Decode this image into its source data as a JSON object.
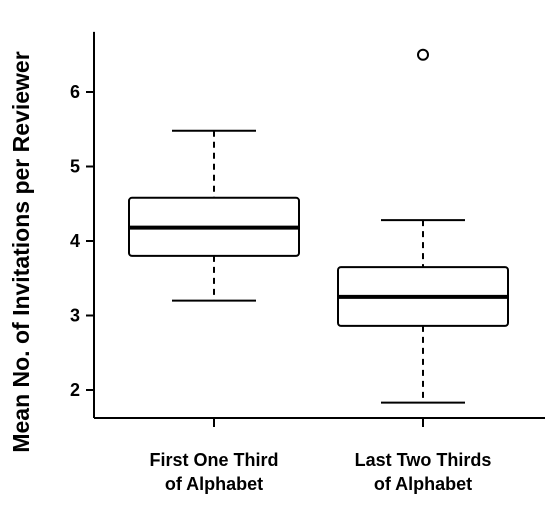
{
  "chart_data": {
    "type": "box",
    "title": "",
    "xlabel": "",
    "ylabel": "Mean No. of Invitations per Reviewer",
    "ylim": [
      1.7,
      6.7
    ],
    "yticks": [
      2,
      3,
      4,
      5,
      6
    ],
    "grid": false,
    "legend": "none",
    "categories": [
      [
        "First One Third",
        "of Alphabet"
      ],
      [
        "Last Two Thirds",
        "of Alphabet"
      ]
    ],
    "boxes": [
      {
        "whisker_low": 3.2,
        "q1": 3.8,
        "median": 4.18,
        "q3": 4.58,
        "whisker_high": 5.48,
        "outliers": []
      },
      {
        "whisker_low": 1.83,
        "q1": 2.86,
        "median": 3.25,
        "q3": 3.65,
        "whisker_high": 4.28,
        "outliers": [
          6.5
        ]
      }
    ]
  },
  "colors": {
    "stroke": "#000000",
    "box_fill": "#ffffff",
    "background": "#ffffff"
  }
}
